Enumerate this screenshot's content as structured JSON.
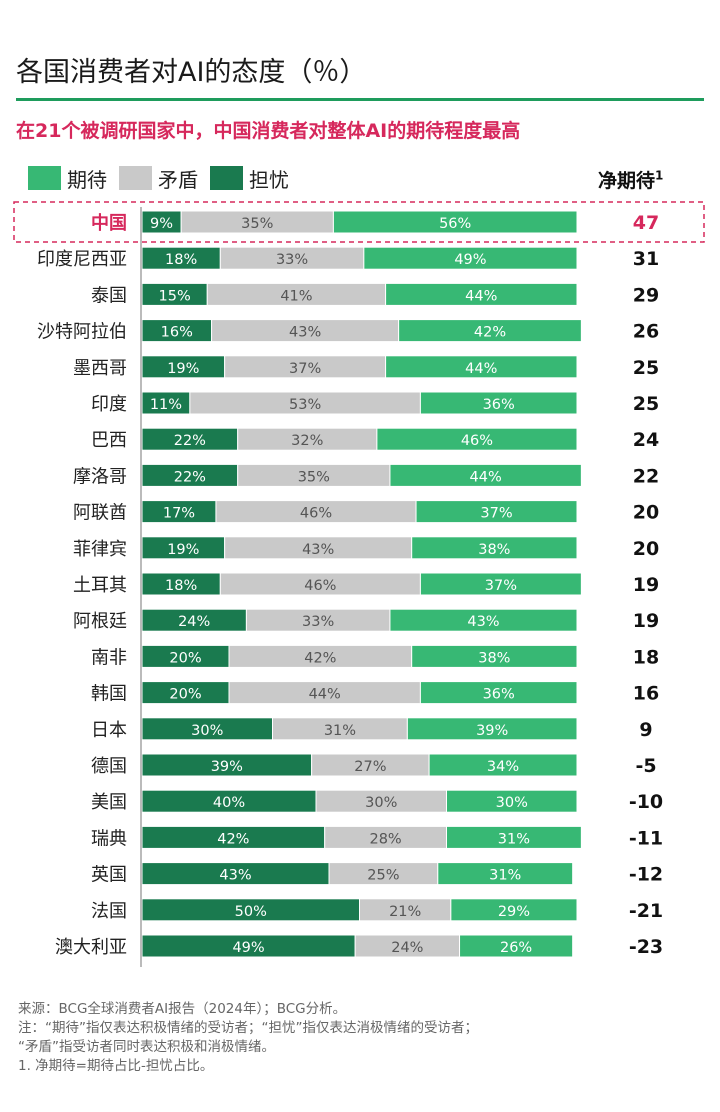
{
  "title": "各国消费者对AI的态度（％）",
  "subtitle": "在21个被调研国家中，中国消费者对整体AI的期待程度最高",
  "legend": [
    {
      "label": "期待",
      "color": "#37b874"
    },
    {
      "label": "矛盾",
      "color": "#c9c9c9"
    },
    {
      "label": "担忧",
      "color": "#1a7a4f"
    }
  ],
  "net_header": "净期待",
  "net_header_sup": "1",
  "highlight_color": "#d6285c",
  "chart_data": {
    "type": "bar",
    "stacked": true,
    "orientation": "horizontal",
    "categories": [
      "中国",
      "印度尼西亚",
      "泰国",
      "沙特阿拉伯",
      "墨西哥",
      "印度",
      "巴西",
      "摩洛哥",
      "阿联酋",
      "菲律宾",
      "土耳其",
      "阿根廷",
      "南非",
      "韩国",
      "日本",
      "德国",
      "美国",
      "瑞典",
      "英国",
      "法国",
      "澳大利亚"
    ],
    "series": [
      {
        "name": "担忧",
        "color": "#1a7a4f",
        "values": [
          9,
          18,
          15,
          16,
          19,
          11,
          22,
          22,
          17,
          19,
          18,
          24,
          20,
          20,
          30,
          39,
          40,
          42,
          43,
          50,
          49
        ]
      },
      {
        "name": "矛盾",
        "color": "#c9c9c9",
        "values": [
          35,
          33,
          41,
          43,
          37,
          53,
          32,
          35,
          46,
          43,
          46,
          33,
          42,
          44,
          31,
          27,
          30,
          28,
          25,
          21,
          24
        ]
      },
      {
        "name": "期待",
        "color": "#37b874",
        "values": [
          56,
          49,
          44,
          42,
          44,
          36,
          46,
          44,
          37,
          38,
          37,
          43,
          38,
          36,
          39,
          34,
          30,
          31,
          31,
          29,
          26
        ]
      }
    ],
    "net_expectation": [
      "47",
      "31",
      "29",
      "26",
      "25",
      "25",
      "24",
      "22",
      "20",
      "20",
      "19",
      "19",
      "18",
      "16",
      "9",
      "-5",
      "-10",
      "-11",
      "-12",
      "-21",
      "-23"
    ],
    "highlighted_category": "中国"
  },
  "footnotes": [
    "来源：BCG全球消费者AI报告（2024年）；BCG分析。",
    "注：“期待”指仅表达积极情绪的受访者；“担忧”指仅表达消极情绪的受访者；",
    "“矛盾”指受访者同时表达积极和消极情绪。",
    "1. 净期待=期待占比-担忧占比。"
  ]
}
